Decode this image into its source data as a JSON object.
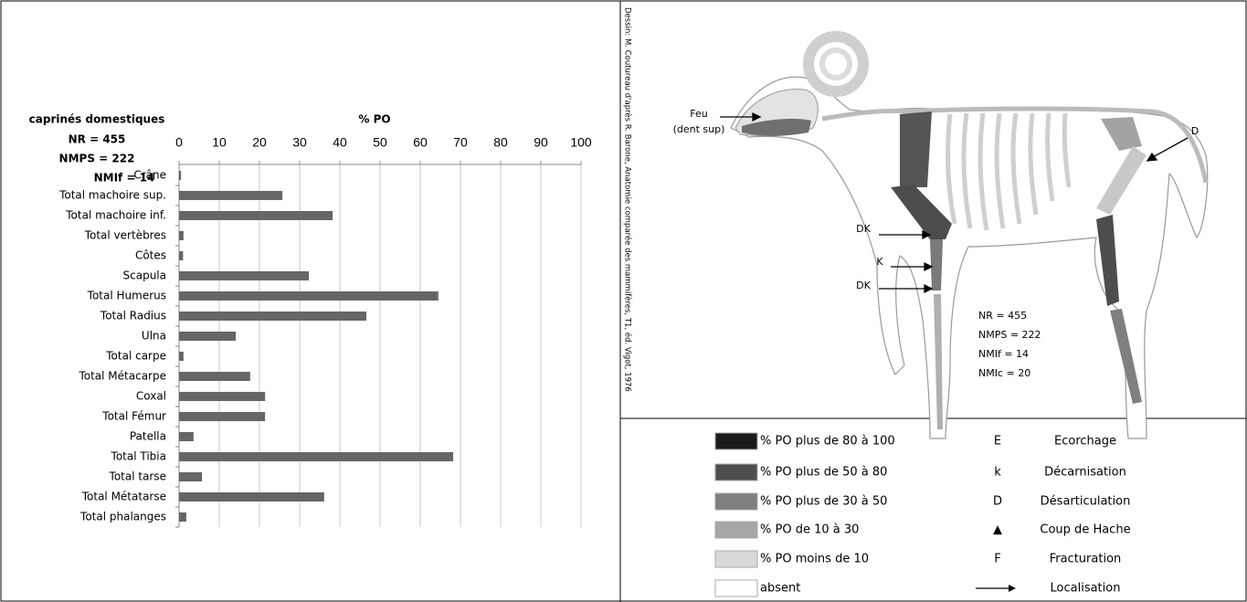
{
  "chart_data": {
    "type": "bar",
    "orientation": "horizontal",
    "title": "% PO",
    "side_text": [
      "caprinés domestiques",
      "NR = 455",
      "NMPS = 222",
      "NMIf = 14"
    ],
    "categories": [
      "Crâne",
      "Total machoire sup.",
      "Total machoire inf.",
      "Total vertèbres",
      "Côtes",
      "Scapula",
      "Total Humerus",
      "Total Radius",
      "Ulna",
      "Total carpe",
      "Total Métacarpe",
      "Coxal",
      "Total Fémur",
      "Patella",
      "Total Tibia",
      "Total tarse",
      "Total Métatarse",
      "Total phalanges"
    ],
    "values": [
      0.5,
      25.7,
      38.2,
      1.1,
      1,
      32.3,
      64.5,
      46.6,
      14.1,
      1.1,
      17.7,
      21.4,
      21.4,
      3.6,
      68.2,
      5.7,
      36.1,
      1.8
    ],
    "color": "#666666",
    "xlim": [
      0,
      100
    ],
    "xticks": [
      0,
      10,
      20,
      30,
      40,
      50,
      60,
      70,
      80,
      90,
      100
    ],
    "grid": true
  },
  "diagram": {
    "credit": "Dessin: M. Coutureau d'après R. Barone, Anatomie comparée des mammifères, T1, éd. Vigot, 1976",
    "labels": [
      "Feu",
      "(dent sup)",
      "D",
      "DK",
      "K",
      "DK"
    ],
    "stats": [
      "NR = 455",
      "NMPS = 222",
      "NMIf = 14",
      "NMIc = 20"
    ]
  },
  "legend": {
    "shades": [
      {
        "label": "% PO plus de 80 à 100",
        "color": "#1a1a1a"
      },
      {
        "label": "% PO  plus de 50 à 80",
        "color": "#4d4d4d"
      },
      {
        "label": "% PO plus de 30 à 50",
        "color": "#7f7f7f"
      },
      {
        "label": "% PO de 10 à 30",
        "color": "#a6a6a6"
      },
      {
        "label": "% PO moins de 10",
        "color": "#d9d9d9"
      },
      {
        "label": "absent",
        "color": "#ffffff"
      }
    ],
    "marks": [
      {
        "symbol": "E",
        "label": "Ecorchage"
      },
      {
        "symbol": "k",
        "label": "Décarnisation"
      },
      {
        "symbol": "D",
        "label": "Désarticulation"
      },
      {
        "symbol": "▲",
        "label": "Coup de Hache"
      },
      {
        "symbol": "F",
        "label": "Fracturation"
      },
      {
        "label": "Localisation"
      }
    ]
  }
}
